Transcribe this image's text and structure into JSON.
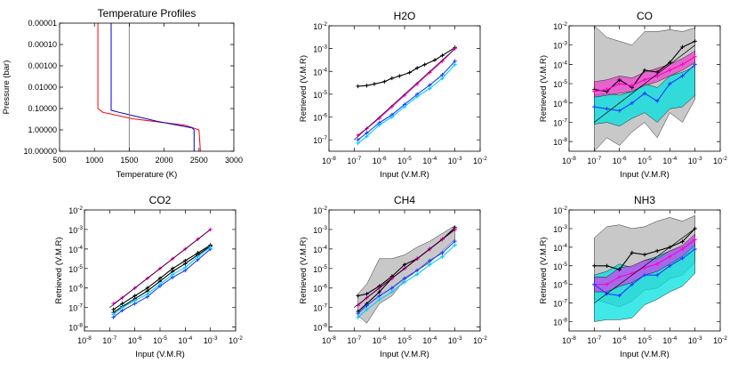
{
  "chart_data": [
    {
      "type": "line",
      "title": "Temperature Profiles",
      "xlabel": "Temperature (K)",
      "ylabel": "Pressure (bar)",
      "xlim": [
        500,
        3000
      ],
      "ylim": [
        10,
        1e-05
      ],
      "xticks": [
        "500",
        "1000",
        "1500",
        "2000",
        "2500",
        "3000"
      ],
      "yticks": [
        "0.00001",
        "0.00010",
        "0.00100",
        "0.01000",
        "0.10000",
        "1.00000",
        "10.00000"
      ],
      "series": [
        {
          "name": "red",
          "color": "#ff0000",
          "points": [
            [
              1050,
              1e-05
            ],
            [
              1050,
              0.1
            ],
            [
              1120,
              0.15
            ],
            [
              1550,
              0.3
            ],
            [
              2300,
              0.6
            ],
            [
              2500,
              1.0
            ],
            [
              2520,
              10
            ]
          ]
        },
        {
          "name": "blue",
          "color": "#0000cc",
          "points": [
            [
              1240,
              1e-05
            ],
            [
              1240,
              0.12
            ],
            [
              1350,
              0.15
            ],
            [
              1900,
              0.4
            ],
            [
              2400,
              0.8
            ],
            [
              2430,
              1.0
            ],
            [
              2430,
              10
            ]
          ]
        },
        {
          "name": "grey",
          "color": "#888888",
          "points": [
            [
              1500,
              1e-05
            ],
            [
              1500,
              10
            ]
          ]
        }
      ]
    },
    {
      "type": "line",
      "title": "H2O",
      "xlabel": "Input (V.M.R)",
      "ylabel": "Retrieved (V.M.R)",
      "xlim": [
        -8,
        -2
      ],
      "ylim": [
        -7.5,
        -2
      ],
      "xticks": [
        "10-8",
        "10-7",
        "10-6",
        "10-5",
        "10-4",
        "10-3",
        "10-2"
      ],
      "yticks": [
        "10-7",
        "10-6",
        "10-5",
        "10-4",
        "10-3",
        "10-2"
      ],
      "series": [
        {
          "name": "black",
          "color": "#000000",
          "x": [
            -6.85,
            -6.5,
            -6.2,
            -5.8,
            -5.5,
            -5.2,
            -4.8,
            -4.5,
            -4.2,
            -3.8,
            -3.5,
            -3.0
          ],
          "y": [
            -4.65,
            -4.62,
            -4.55,
            -4.45,
            -4.3,
            -4.2,
            -4.05,
            -3.85,
            -3.7,
            -3.5,
            -3.3,
            -2.95
          ]
        },
        {
          "name": "magenta",
          "color": "#ff00cc",
          "x": [
            -6.85,
            -6.5,
            -6.0,
            -5.5,
            -5.0,
            -4.5,
            -4.0,
            -3.5,
            -3.0
          ],
          "y": [
            -6.8,
            -6.5,
            -6.05,
            -5.55,
            -5.05,
            -4.55,
            -4.05,
            -3.55,
            -3.0
          ]
        },
        {
          "name": "blue",
          "color": "#1a3cff",
          "x": [
            -6.85,
            -6.5,
            -6.0,
            -5.5,
            -5.0,
            -4.5,
            -4.0,
            -3.5,
            -3.0
          ],
          "y": [
            -7.0,
            -6.7,
            -6.25,
            -5.9,
            -5.45,
            -5.0,
            -4.6,
            -4.15,
            -3.55
          ]
        },
        {
          "name": "cyan",
          "color": "#00ccff",
          "x": [
            -6.85,
            -6.5,
            -6.0,
            -5.5,
            -5.0,
            -4.5,
            -4.0,
            -3.5,
            -3.0
          ],
          "y": [
            -7.15,
            -6.85,
            -6.35,
            -6.0,
            -5.55,
            -5.1,
            -4.75,
            -4.3,
            -3.7
          ]
        },
        {
          "name": "identity",
          "color": "#000000",
          "x": [
            -7.0,
            -3.0
          ],
          "y": [
            -7.0,
            -3.0
          ]
        }
      ]
    },
    {
      "type": "area",
      "title": "CO",
      "xlabel": "Input (V.M.R)",
      "ylabel": "Retrieved (V.M.R)",
      "xlim": [
        -8,
        -2
      ],
      "ylim": [
        -8.5,
        -2
      ],
      "xticks": [
        "10-8",
        "10-7",
        "10-6",
        "10-5",
        "10-4",
        "10-3",
        "10-2"
      ],
      "yticks": [
        "10-8",
        "10-7",
        "10-6",
        "10-5",
        "10-4",
        "10-3",
        "10-2"
      ],
      "bands": [
        {
          "name": "grey",
          "color": "#c8c8c8",
          "x": [
            -7.0,
            -6.5,
            -6.0,
            -5.5,
            -5.0,
            -4.5,
            -4.0,
            -3.5,
            -3.0
          ],
          "upper": [
            -2.0,
            -2.6,
            -2.8,
            -3.0,
            -2.3,
            -2.3,
            -2.2,
            -2.3,
            -2.1
          ],
          "lower": [
            -8.5,
            -7.8,
            -8.2,
            -7.5,
            -7.0,
            -7.8,
            -6.5,
            -7.0,
            -5.8
          ]
        },
        {
          "name": "cyan",
          "color": "#00e0e0",
          "x": [
            -7.0,
            -6.5,
            -6.0,
            -5.5,
            -5.0,
            -4.5,
            -4.0,
            -3.5,
            -3.0
          ],
          "upper": [
            -5.6,
            -5.5,
            -5.6,
            -5.4,
            -5.0,
            -5.2,
            -4.6,
            -4.4,
            -4.1
          ],
          "lower": [
            -7.1,
            -7.0,
            -7.2,
            -6.8,
            -6.5,
            -7.0,
            -6.3,
            -6.2,
            -5.6
          ]
        },
        {
          "name": "magenta",
          "color": "#ee44cc",
          "x": [
            -7.0,
            -6.5,
            -6.0,
            -5.5,
            -5.0,
            -4.5,
            -4.0,
            -3.5,
            -3.0
          ],
          "upper": [
            -4.9,
            -4.8,
            -4.6,
            -4.7,
            -4.4,
            -4.2,
            -4.0,
            -3.7,
            -3.3
          ],
          "lower": [
            -5.7,
            -5.6,
            -5.5,
            -5.4,
            -5.1,
            -4.9,
            -4.6,
            -4.3,
            -3.9
          ]
        }
      ],
      "series": [
        {
          "name": "black",
          "color": "#000000",
          "x": [
            -7.0,
            -6.5,
            -6.0,
            -5.5,
            -5.0,
            -4.5,
            -4.0,
            -3.5,
            -3.0
          ],
          "y": [
            -5.3,
            -5.4,
            -4.8,
            -5.2,
            -4.3,
            -4.4,
            -3.9,
            -3.1,
            -2.8
          ]
        },
        {
          "name": "magenta",
          "color": "#ff00cc",
          "x": [
            -7.0,
            -6.5,
            -6.0,
            -5.5,
            -5.0,
            -4.5,
            -4.0,
            -3.5,
            -3.0
          ],
          "y": [
            -5.4,
            -5.3,
            -5.0,
            -5.1,
            -4.8,
            -4.6,
            -4.3,
            -4.0,
            -3.6
          ]
        },
        {
          "name": "blue",
          "color": "#1a3cff",
          "x": [
            -7.0,
            -6.5,
            -6.0,
            -5.5,
            -5.0,
            -4.5,
            -4.0,
            -3.5,
            -3.0
          ],
          "y": [
            -6.2,
            -6.3,
            -6.4,
            -6.0,
            -5.5,
            -5.9,
            -5.0,
            -4.6,
            -4.0
          ]
        },
        {
          "name": "identity",
          "color": "#000000",
          "x": [
            -7.0,
            -3.0
          ],
          "y": [
            -7.0,
            -3.0
          ]
        }
      ]
    },
    {
      "type": "line",
      "title": "CO2",
      "xlabel": "Input (V.M.R)",
      "ylabel": "Retrieved (V.M.R)",
      "xlim": [
        -8,
        -2
      ],
      "ylim": [
        -8.2,
        -2
      ],
      "xticks": [
        "10-8",
        "10-7",
        "10-6",
        "10-5",
        "10-4",
        "10-3",
        "10-2"
      ],
      "yticks": [
        "10-8",
        "10-7",
        "10-6",
        "10-5",
        "10-4",
        "10-3",
        "10-2"
      ],
      "series": [
        {
          "name": "magenta",
          "color": "#ff00cc",
          "x": [
            -6.85,
            -6.5,
            -6.0,
            -5.5,
            -5.0,
            -4.5,
            -4.0,
            -3.5,
            -3.0
          ],
          "y": [
            -6.8,
            -6.5,
            -6.0,
            -5.5,
            -5.0,
            -4.5,
            -4.0,
            -3.5,
            -3.0
          ]
        },
        {
          "name": "black1",
          "color": "#000000",
          "x": [
            -6.85,
            -6.5,
            -6.0,
            -5.5,
            -5.0,
            -4.5,
            -4.0,
            -3.5,
            -3.0
          ],
          "y": [
            -7.1,
            -6.8,
            -6.4,
            -6.0,
            -5.5,
            -5.0,
            -4.6,
            -4.2,
            -3.8
          ]
        },
        {
          "name": "black2",
          "color": "#000000",
          "x": [
            -6.85,
            -6.5,
            -6.0,
            -5.5,
            -5.0,
            -4.5,
            -4.0,
            -3.5,
            -3.0
          ],
          "y": [
            -7.25,
            -6.95,
            -6.55,
            -6.15,
            -5.65,
            -5.15,
            -4.75,
            -4.3,
            -3.85
          ]
        },
        {
          "name": "blue",
          "color": "#1a3cff",
          "x": [
            -6.85,
            -6.5,
            -6.0,
            -5.5,
            -5.0,
            -4.5,
            -4.0,
            -3.5,
            -3.0
          ],
          "y": [
            -7.5,
            -7.15,
            -6.8,
            -6.45,
            -5.9,
            -5.45,
            -5.1,
            -4.55,
            -4.0
          ]
        },
        {
          "name": "cyan",
          "color": "#00ccff",
          "x": [
            -6.85,
            -6.5,
            -6.0,
            -5.5,
            -5.0,
            -4.5,
            -4.0,
            -3.5,
            -3.0
          ],
          "y": [
            -7.35,
            -7.0,
            -6.65,
            -6.3,
            -5.8,
            -5.3,
            -4.95,
            -4.4,
            -3.9
          ]
        },
        {
          "name": "identity",
          "color": "#000000",
          "x": [
            -7.0,
            -3.0
          ],
          "y": [
            -7.0,
            -3.0
          ]
        }
      ]
    },
    {
      "type": "area",
      "title": "CH4",
      "xlabel": "Input (V.M.R)",
      "ylabel": "Retrieved (V.M.R)",
      "xlim": [
        -8,
        -2
      ],
      "ylim": [
        -8.2,
        -2
      ],
      "xticks": [
        "10-8",
        "10-7",
        "10-6",
        "10-5",
        "10-4",
        "10-3",
        "10-2"
      ],
      "yticks": [
        "10-8",
        "10-7",
        "10-6",
        "10-5",
        "10-4",
        "10-3",
        "10-2"
      ],
      "bands": [
        {
          "name": "grey",
          "color": "#c8c8c8",
          "x": [
            -6.85,
            -6.5,
            -6.0,
            -5.5,
            -5.0,
            -4.5,
            -4.0,
            -3.5,
            -3.0
          ],
          "upper": [
            -6.3,
            -5.8,
            -4.5,
            -4.5,
            -4.3,
            -3.9,
            -3.6,
            -3.2,
            -2.8
          ],
          "lower": [
            -7.4,
            -7.8,
            -6.8,
            -6.4,
            -5.6,
            -5.1,
            -4.7,
            -4.1,
            -3.5
          ]
        }
      ],
      "series": [
        {
          "name": "black1",
          "color": "#000000",
          "x": [
            -6.85,
            -6.5,
            -6.0,
            -5.5,
            -5.0,
            -4.5,
            -4.0,
            -3.5,
            -3.0
          ],
          "y": [
            -6.4,
            -6.3,
            -5.9,
            -5.4,
            -4.8,
            -4.5,
            -4.0,
            -3.5,
            -2.9
          ]
        },
        {
          "name": "black2",
          "color": "#000000",
          "x": [
            -6.85,
            -6.5,
            -6.0,
            -5.5,
            -5.0,
            -4.5,
            -4.0,
            -3.5,
            -3.0
          ],
          "y": [
            -7.2,
            -6.8,
            -6.2,
            -5.5,
            -5.0,
            -4.5,
            -4.0,
            -3.5,
            -3.0
          ]
        },
        {
          "name": "magenta",
          "color": "#ff00cc",
          "x": [
            -6.85,
            -6.5,
            -6.0,
            -5.5,
            -5.0,
            -4.5,
            -4.0,
            -3.5,
            -3.0
          ],
          "y": [
            -6.9,
            -6.5,
            -6.0,
            -5.5,
            -5.0,
            -4.5,
            -4.0,
            -3.5,
            -3.0
          ]
        },
        {
          "name": "blue",
          "color": "#1a3cff",
          "x": [
            -6.85,
            -6.5,
            -6.0,
            -5.5,
            -5.0,
            -4.5,
            -4.0,
            -3.5,
            -3.0
          ],
          "y": [
            -7.3,
            -6.9,
            -6.4,
            -6.0,
            -5.5,
            -5.1,
            -4.6,
            -4.2,
            -3.6
          ]
        },
        {
          "name": "cyan",
          "color": "#00ccff",
          "x": [
            -6.85,
            -6.5,
            -6.0,
            -5.5,
            -5.0,
            -4.5,
            -4.0,
            -3.5,
            -3.0
          ],
          "y": [
            -7.5,
            -7.1,
            -6.6,
            -6.2,
            -5.7,
            -5.3,
            -4.8,
            -4.4,
            -3.8
          ]
        },
        {
          "name": "identity",
          "color": "#000000",
          "x": [
            -7.0,
            -3.0
          ],
          "y": [
            -7.0,
            -3.0
          ]
        }
      ]
    },
    {
      "type": "area",
      "title": "NH3",
      "xlabel": "Input (V.M.R)",
      "ylabel": "Retrieved (V.M.R)",
      "xlim": [
        -8,
        -2
      ],
      "ylim": [
        -8.5,
        -2
      ],
      "xticks": [
        "10-8",
        "10-7",
        "10-6",
        "10-5",
        "10-4",
        "10-3",
        "10-2"
      ],
      "yticks": [
        "10-8",
        "10-7",
        "10-6",
        "10-5",
        "10-4",
        "10-3",
        "10-2"
      ],
      "bands": [
        {
          "name": "grey",
          "color": "#c8c8c8",
          "x": [
            -7.0,
            -6.5,
            -6.0,
            -5.5,
            -5.0,
            -4.5,
            -4.0,
            -3.5,
            -3.0
          ],
          "upper": [
            -3.5,
            -2.9,
            -2.8,
            -3.0,
            -2.9,
            -2.6,
            -2.4,
            -2.6,
            -2.3
          ],
          "lower": [
            -6.8,
            -7.0,
            -7.2,
            -6.9,
            -6.3,
            -6.2,
            -5.7,
            -5.5,
            -4.8
          ]
        },
        {
          "name": "cyan",
          "color": "#00e0e0",
          "x": [
            -7.0,
            -6.5,
            -6.0,
            -5.5,
            -5.0,
            -4.5,
            -4.0,
            -3.5,
            -3.0
          ],
          "upper": [
            -5.5,
            -5.3,
            -4.9,
            -5.1,
            -4.7,
            -4.5,
            -4.2,
            -4.0,
            -3.5
          ],
          "lower": [
            -8.0,
            -7.9,
            -7.9,
            -7.8,
            -7.1,
            -6.8,
            -6.4,
            -6.1,
            -5.4
          ]
        },
        {
          "name": "magenta",
          "color": "#cc44ee",
          "x": [
            -7.0,
            -6.5,
            -6.0,
            -5.5,
            -5.0,
            -4.5,
            -4.0,
            -3.5,
            -3.0
          ],
          "upper": [
            -5.6,
            -5.6,
            -5.1,
            -5.0,
            -4.7,
            -4.6,
            -4.2,
            -3.9,
            -3.3
          ],
          "lower": [
            -6.4,
            -6.4,
            -6.1,
            -5.9,
            -5.5,
            -5.3,
            -4.9,
            -4.5,
            -3.9
          ]
        }
      ],
      "series": [
        {
          "name": "black",
          "color": "#000000",
          "x": [
            -7.0,
            -6.5,
            -6.0,
            -5.5,
            -5.0,
            -4.5,
            -4.0,
            -3.5,
            -3.0
          ],
          "y": [
            -5.0,
            -5.0,
            -5.2,
            -4.3,
            -4.4,
            -4.2,
            -4.0,
            -3.7,
            -3.0
          ]
        },
        {
          "name": "magenta",
          "color": "#ff00cc",
          "x": [
            -7.0,
            -6.5,
            -6.0,
            -5.5,
            -5.0,
            -4.5,
            -4.0,
            -3.5,
            -3.0
          ],
          "y": [
            -6.0,
            -6.0,
            -5.6,
            -5.4,
            -5.1,
            -4.9,
            -4.5,
            -4.1,
            -3.6
          ]
        },
        {
          "name": "blue",
          "color": "#1a3cff",
          "x": [
            -7.0,
            -6.5,
            -6.0,
            -5.5,
            -5.0,
            -4.5,
            -4.0,
            -3.5,
            -3.0
          ],
          "y": [
            -6.0,
            -6.5,
            -6.6,
            -6.0,
            -5.5,
            -5.5,
            -5.0,
            -4.6,
            -4.1
          ]
        },
        {
          "name": "identity",
          "color": "#000000",
          "x": [
            -7.0,
            -3.0
          ],
          "y": [
            -7.0,
            -3.0
          ]
        }
      ]
    }
  ]
}
